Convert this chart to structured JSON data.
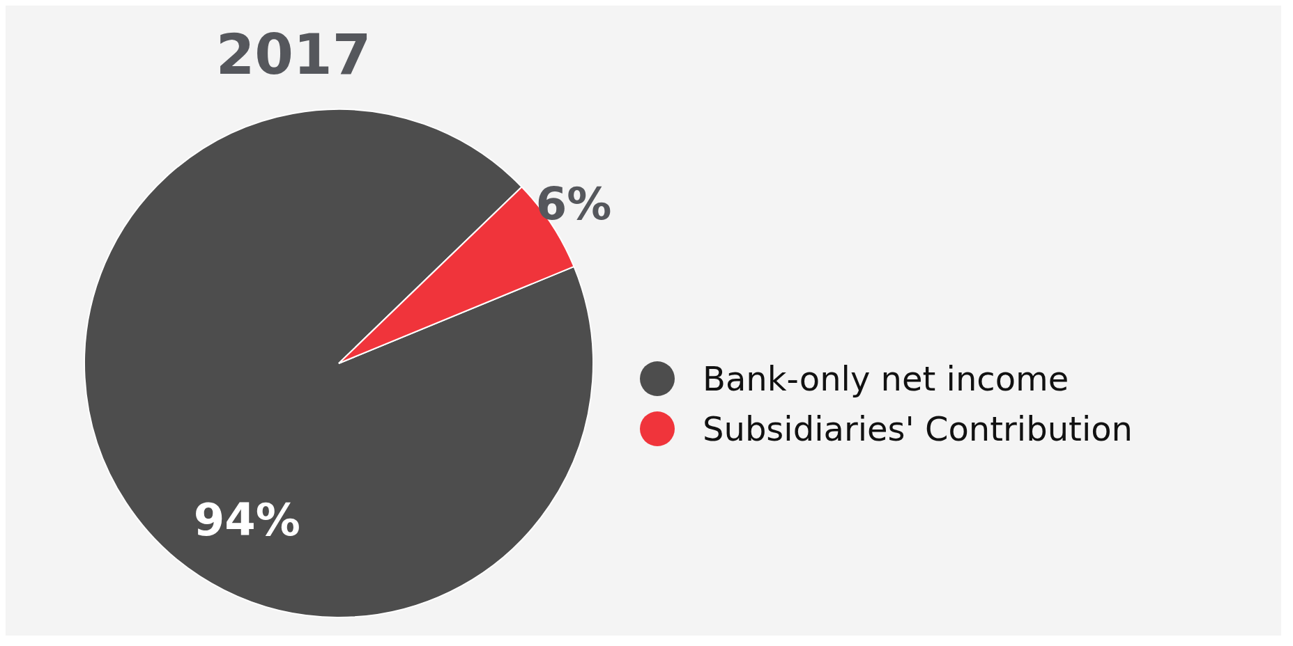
{
  "chart_data": {
    "type": "pie",
    "title": "2017",
    "categories": [
      "Bank-only net income",
      "Subsidiaries' Contribution"
    ],
    "values": [
      94,
      6
    ],
    "colors": [
      "#4d4d4d",
      "#f0343b"
    ],
    "value_labels": [
      "94%",
      "6%"
    ],
    "legend": "right"
  }
}
